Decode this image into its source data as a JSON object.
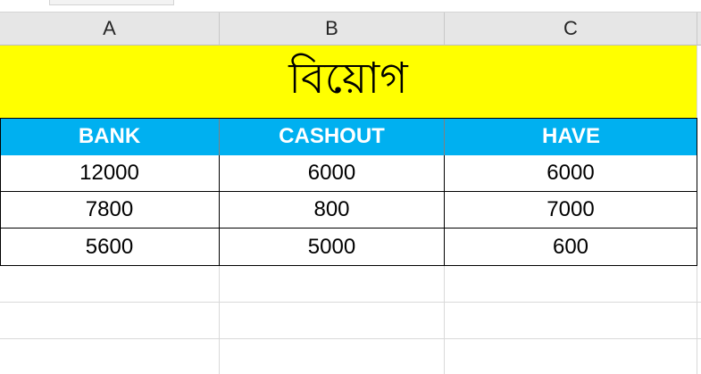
{
  "columns": [
    "A",
    "B",
    "C"
  ],
  "title": "বিয়োগ",
  "headers": [
    "BANK",
    "CASHOUT",
    "HAVE"
  ],
  "rows": [
    [
      "12000",
      "6000",
      "6000"
    ],
    [
      "7800",
      "800",
      "7000"
    ],
    [
      "5600",
      "5000",
      "600"
    ]
  ],
  "colors": {
    "title_fill": "#ffff00",
    "header_fill": "#00b0f0",
    "header_text": "#ffffff",
    "column_header_bg": "#e6e6e6"
  }
}
